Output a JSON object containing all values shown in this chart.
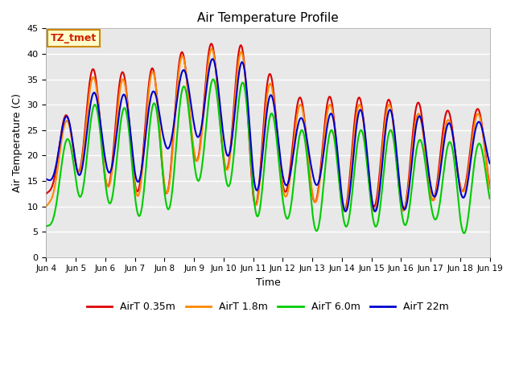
{
  "title": "Air Temperature Profile",
  "xlabel": "Time",
  "ylabel": "Air Temperature (C)",
  "ylim": [
    0,
    45
  ],
  "plot_bg_color": "#e8e8e8",
  "series": [
    {
      "label": "AirT 0.35m",
      "color": "#dd0000",
      "lw": 1.5
    },
    {
      "label": "AirT 1.8m",
      "color": "#ff8800",
      "lw": 1.5
    },
    {
      "label": "AirT 6.0m",
      "color": "#00cc00",
      "lw": 1.5
    },
    {
      "label": "AirT 22m",
      "color": "#0000cc",
      "lw": 1.5
    }
  ],
  "xtick_labels": [
    "Jun 4",
    "Jun 5",
    "Jun 6",
    "Jun 7",
    "Jun 8",
    "Jun 9",
    "Jun 10",
    "Jun 11",
    "Jun 12",
    "Jun 13",
    "Jun 14",
    "Jun 15",
    "Jun 16",
    "Jun 17",
    "Jun 18",
    "Jun 19"
  ],
  "annotation_text": "TZ_tmet",
  "annotation_color": "#cc2200",
  "annotation_bg": "#ffffcc",
  "annotation_border": "#cc8800"
}
